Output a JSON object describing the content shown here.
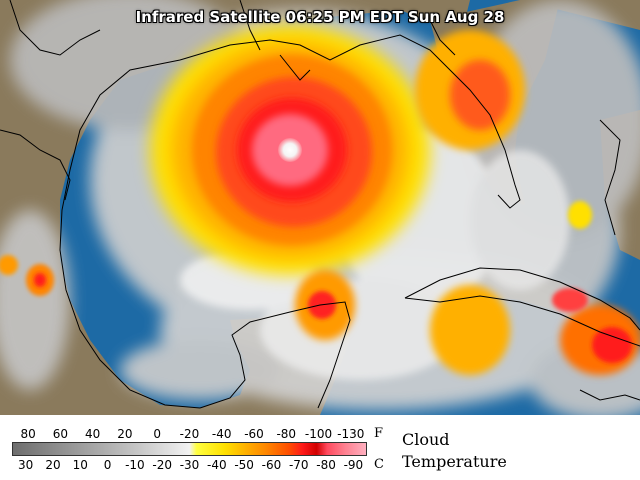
{
  "title": "Infrared Satellite 06:25 PM EDT Sun Aug 28",
  "legend": {
    "title_line1": "Cloud",
    "title_line2": "Temperature",
    "fahrenheit_unit": "F",
    "celsius_unit": "C",
    "fahrenheit_ticks": [
      "80",
      "60",
      "40",
      "20",
      "0",
      "-20",
      "-40",
      "-60",
      "-80",
      "-100",
      "-130"
    ],
    "celsius_ticks": [
      "30",
      "20",
      "10",
      "0",
      "-10",
      "-20",
      "-30",
      "-40",
      "-50",
      "-60",
      "-70",
      "-80",
      "-90"
    ]
  },
  "colors": {
    "ocean": "#1d6aa5",
    "land": "#8a7a5c",
    "cloud_gray": "#c8c8c8",
    "cloud_yellow": "#ffe000",
    "cloud_orange": "#ff8400",
    "cloud_red": "#ff1a1a",
    "cloud_pink": "#ff7a8a",
    "eye": "#ffffff",
    "outline": "#000000"
  }
}
